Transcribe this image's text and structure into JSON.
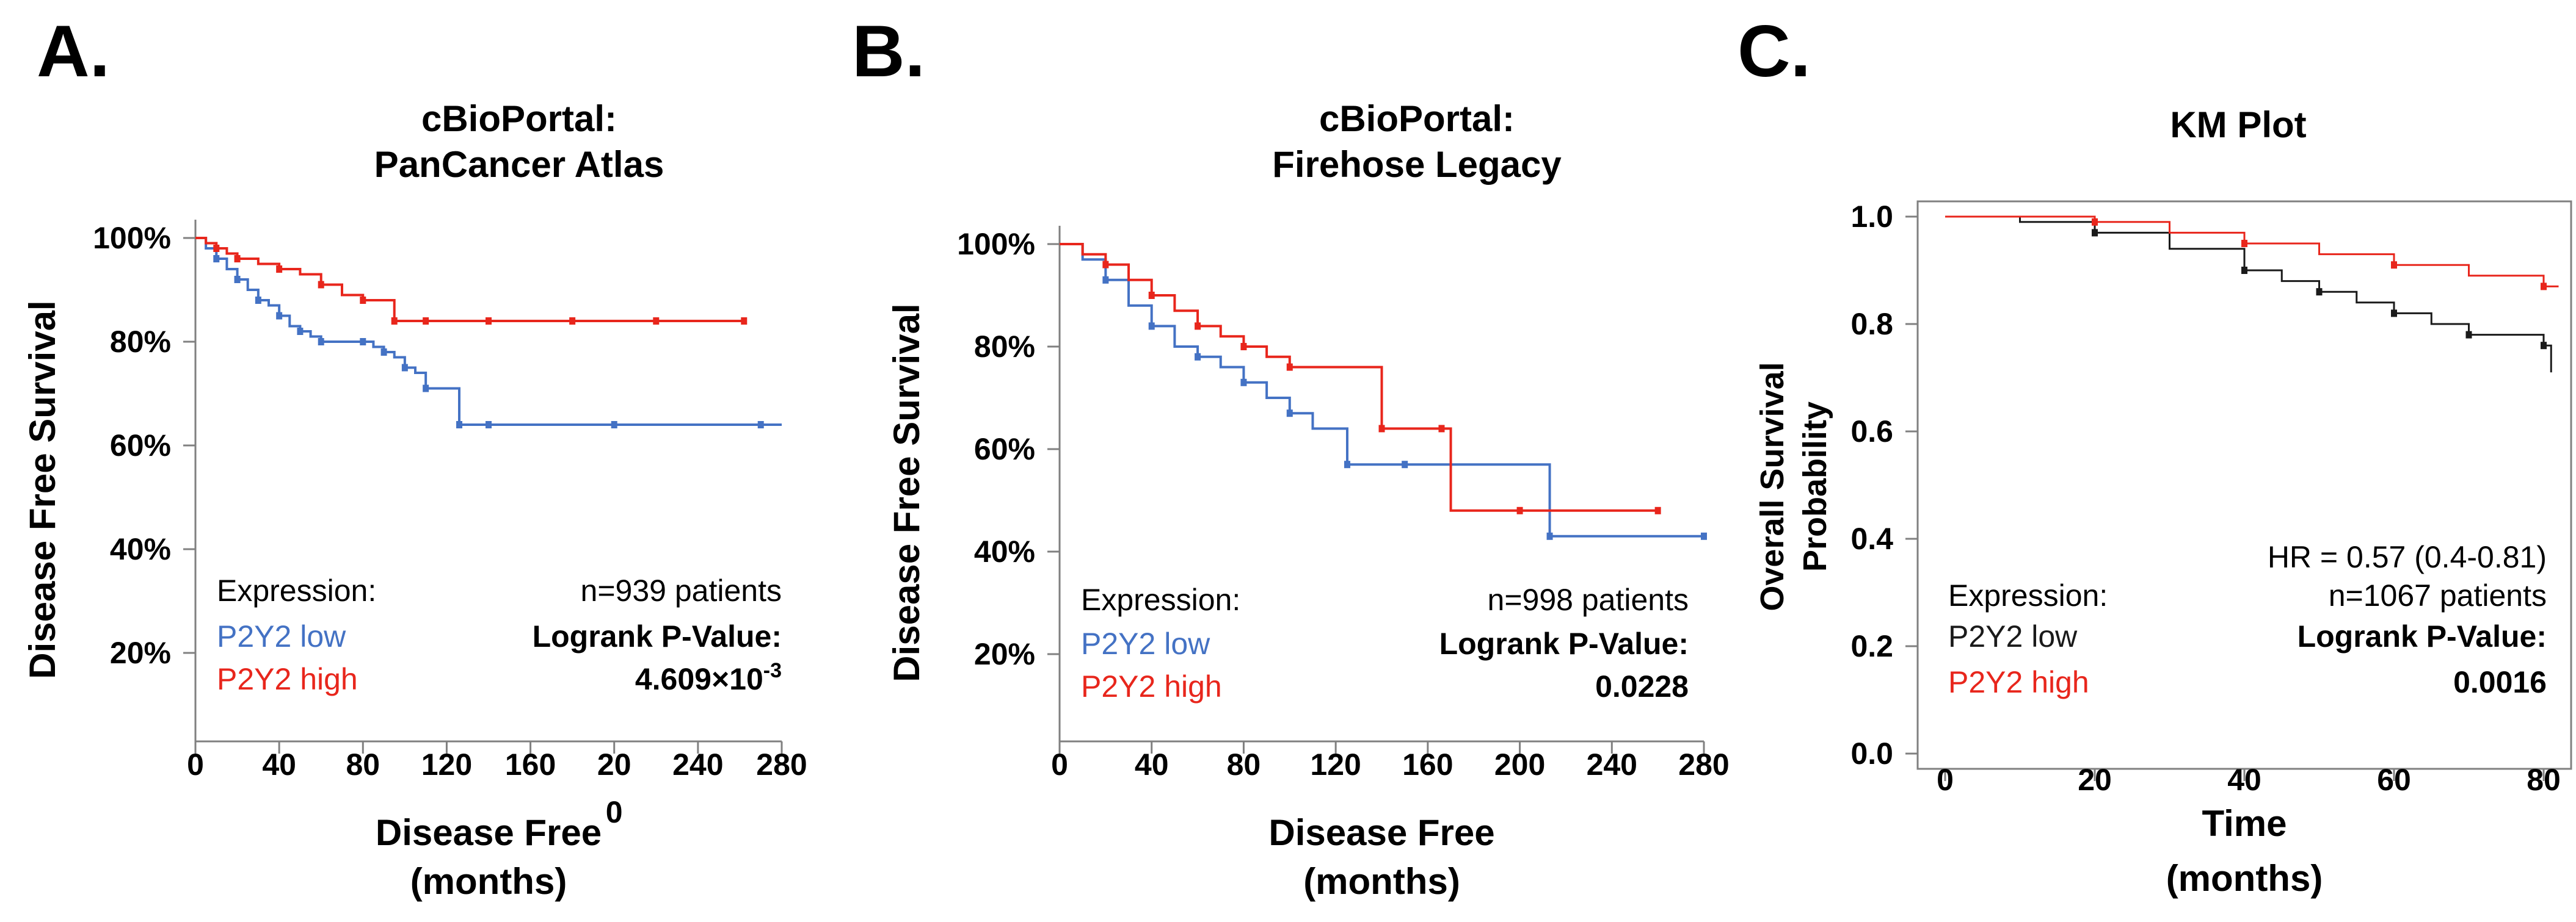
{
  "colors": {
    "low_blue": "#4472C4",
    "high_red": "#E8261C",
    "low_black": "#1a1a1a",
    "axis": "#808080"
  },
  "chart_data": [
    {
      "type": "line",
      "panel_letter": "A.",
      "title": [
        "cBioPortal:",
        "PanCancer Atlas"
      ],
      "ylabel": "Disease Free Survival",
      "xlabel": [
        "Disease Free",
        "(months)"
      ],
      "xlim": [
        0,
        280
      ],
      "ylim": [
        0,
        100
      ],
      "x_tick_labels": [
        "0",
        "40",
        "80",
        "120",
        "160",
        "20\n0",
        "240",
        "280"
      ],
      "y_tick_labels": [
        "100%",
        "80%",
        "60%",
        "40%",
        "20%"
      ],
      "y_tick_values": [
        100,
        80,
        60,
        40,
        20
      ],
      "legend_title": "Expression:",
      "series": [
        {
          "name": "P2Y2 low",
          "color": "#4472C4",
          "x": [
            0,
            5,
            10,
            15,
            20,
            25,
            30,
            35,
            40,
            45,
            50,
            55,
            60,
            70,
            80,
            85,
            90,
            95,
            100,
            105,
            110,
            120,
            126,
            130,
            140,
            160,
            200,
            240,
            270,
            280
          ],
          "y": [
            100,
            98,
            96,
            94,
            92,
            90,
            88,
            87,
            85,
            83,
            82,
            81,
            80,
            80,
            80,
            79,
            78,
            77,
            75,
            74,
            71,
            71,
            64,
            64,
            64,
            64,
            64,
            64,
            64,
            64
          ]
        },
        {
          "name": "P2Y2 high",
          "color": "#E8261C",
          "x": [
            0,
            5,
            10,
            15,
            20,
            30,
            40,
            50,
            60,
            70,
            80,
            90,
            95,
            100,
            110,
            120,
            140,
            160,
            180,
            200,
            220,
            240,
            262
          ],
          "y": [
            100,
            99,
            98,
            97,
            96,
            95,
            94,
            93,
            91,
            89,
            88,
            88,
            84,
            84,
            84,
            84,
            84,
            84,
            84,
            84,
            84,
            84,
            84
          ]
        }
      ],
      "stats": {
        "n": "n=939 patients",
        "pvalue_label": "Logrank P-Value:",
        "pvalue": "4.609×10",
        "pvalue_exp": "-3"
      }
    },
    {
      "type": "line",
      "panel_letter": "B.",
      "title": [
        "cBioPortal:",
        "Firehose Legacy"
      ],
      "ylabel": "Disease Free Survival",
      "xlabel": [
        "Disease Free",
        "(months)"
      ],
      "xlim": [
        0,
        280
      ],
      "ylim": [
        0,
        100
      ],
      "x_tick_labels": [
        "0",
        "40",
        "80",
        "120",
        "160",
        "200",
        "240",
        "280"
      ],
      "y_tick_labels": [
        "100%",
        "80%",
        "60%",
        "40%",
        "20%"
      ],
      "y_tick_values": [
        100,
        80,
        60,
        40,
        20
      ],
      "legend_title": "Expression:",
      "series": [
        {
          "name": "P2Y2 low",
          "color": "#4472C4",
          "x": [
            0,
            10,
            20,
            30,
            40,
            50,
            60,
            70,
            80,
            90,
            100,
            110,
            125,
            135,
            150,
            180,
            213,
            240,
            280
          ],
          "y": [
            100,
            97,
            93,
            88,
            84,
            80,
            78,
            76,
            73,
            70,
            67,
            64,
            57,
            57,
            57,
            57,
            43,
            43,
            43
          ]
        },
        {
          "name": "P2Y2 high",
          "color": "#E8261C",
          "x": [
            0,
            10,
            20,
            30,
            40,
            50,
            60,
            70,
            80,
            90,
            100,
            137,
            140,
            150,
            166,
            170,
            200,
            230,
            260
          ],
          "y": [
            100,
            98,
            96,
            93,
            90,
            87,
            84,
            82,
            80,
            78,
            76,
            76,
            64,
            64,
            64,
            48,
            48,
            48,
            48
          ]
        }
      ],
      "stats": {
        "n": "n=998 patients",
        "pvalue_label": "Logrank P-Value:",
        "pvalue": "0.0228"
      }
    },
    {
      "type": "line",
      "panel_letter": "C.",
      "title": [
        "KM Plot"
      ],
      "ylabel": "Overall Survival Probability",
      "xlabel": [
        "Time",
        "(months)"
      ],
      "xlim": [
        0,
        80
      ],
      "ylim": [
        0,
        1
      ],
      "x_tick_labels": [
        "0",
        "20",
        "40",
        "60",
        "80"
      ],
      "y_tick_labels": [
        "1.0",
        "0.8",
        "0.6",
        "0.4",
        "0.2",
        "0.0"
      ],
      "y_tick_values": [
        1.0,
        0.8,
        0.6,
        0.4,
        0.2,
        0.0
      ],
      "legend_title": "Expression:",
      "series": [
        {
          "name": "P2Y2 low",
          "color": "#1a1a1a",
          "x": [
            0,
            10,
            20,
            30,
            40,
            45,
            50,
            55,
            60,
            65,
            70,
            74,
            80,
            81
          ],
          "y": [
            1.0,
            0.99,
            0.97,
            0.94,
            0.9,
            0.88,
            0.86,
            0.84,
            0.82,
            0.8,
            0.78,
            0.78,
            0.76,
            0.71
          ]
        },
        {
          "name": "P2Y2 high",
          "color": "#E8261C",
          "x": [
            0,
            10,
            20,
            30,
            40,
            50,
            60,
            70,
            80,
            82
          ],
          "y": [
            1.0,
            1.0,
            0.99,
            0.97,
            0.95,
            0.93,
            0.91,
            0.89,
            0.87,
            0.87
          ]
        }
      ],
      "stats": {
        "hr": "HR = 0.57 (0.4-0.81)",
        "n": "n=1067 patients",
        "pvalue_label": "Logrank P-Value:",
        "pvalue": "0.0016"
      }
    }
  ]
}
